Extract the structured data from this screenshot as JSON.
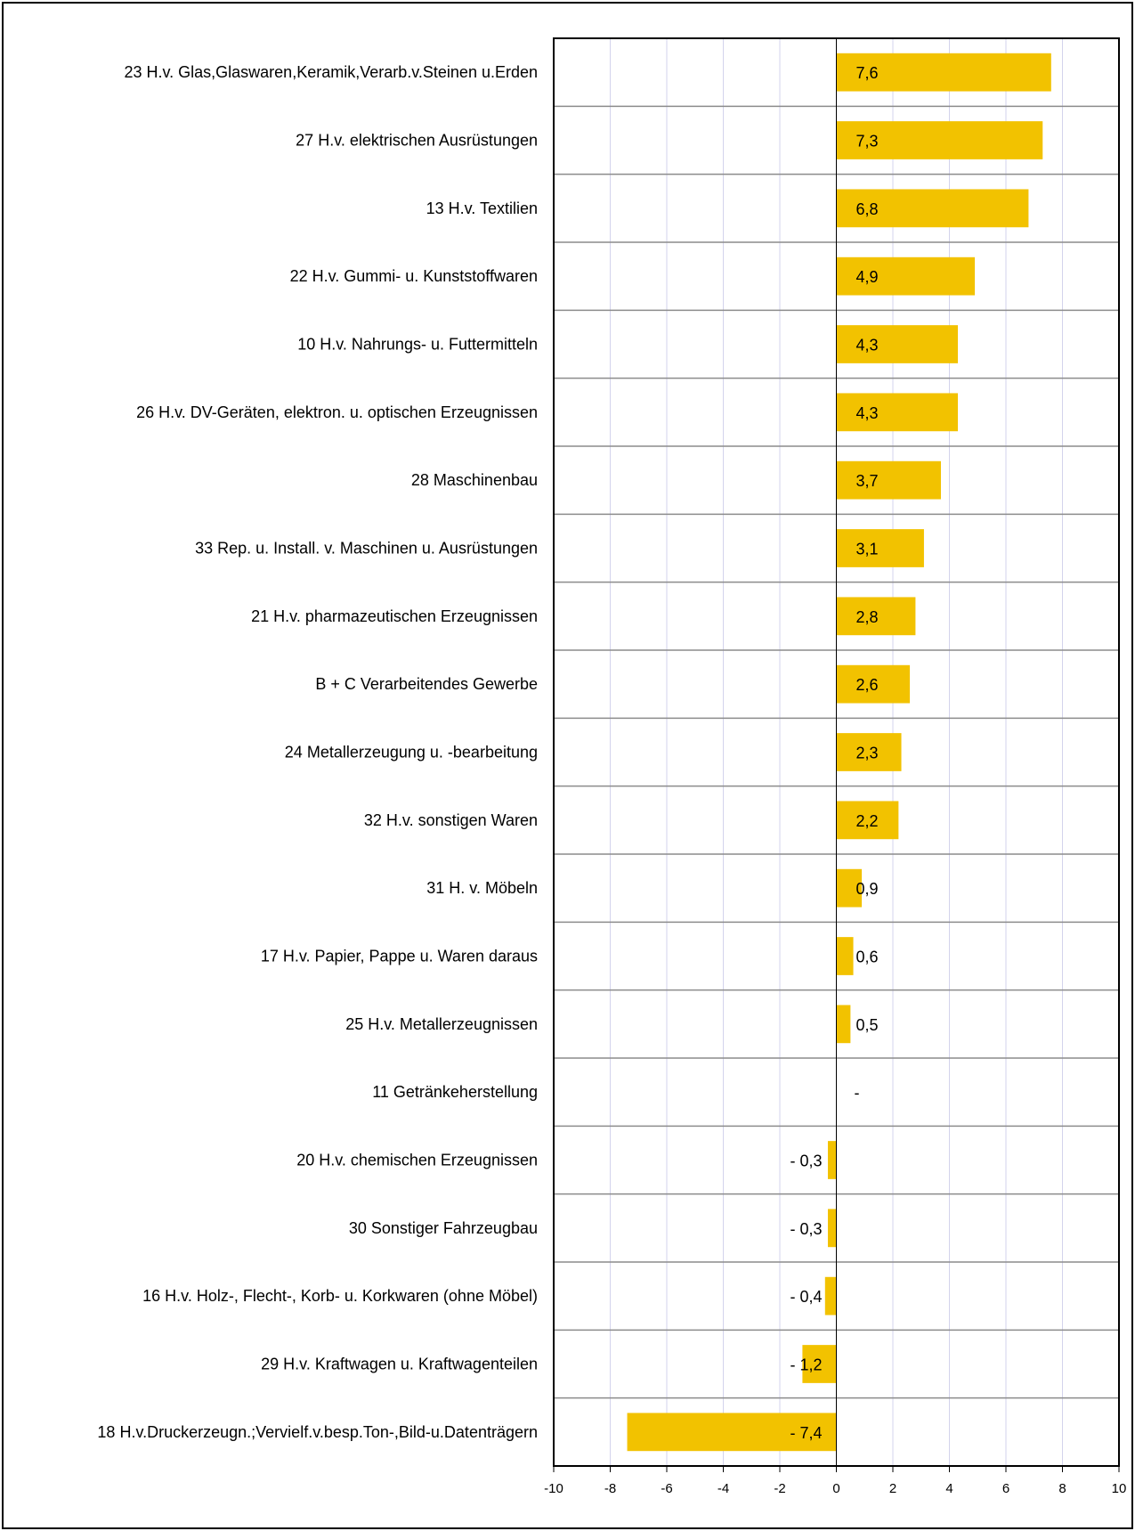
{
  "chart_data": {
    "type": "bar",
    "orientation": "horizontal",
    "title": "",
    "xlabel": "",
    "ylabel": "",
    "xlim": [
      -10,
      10
    ],
    "x_ticks": [
      -10,
      -8,
      -6,
      -4,
      -2,
      0,
      2,
      4,
      6,
      8,
      10
    ],
    "grid": "vertical lines at every tick, horizontal lines between categories",
    "bar_color": "#F2C200",
    "categories": [
      "23 H.v. Glas,Glaswaren,Keramik,Verarb.v.Steinen u.Erden",
      "27 H.v. elektrischen Ausrüstungen",
      "13 H.v. Textilien",
      "22 H.v. Gummi- u. Kunststoffwaren",
      "10 H.v. Nahrungs- u. Futtermitteln",
      "26 H.v. DV-Geräten, elektron. u. optischen Erzeugnissen",
      "28 Maschinenbau",
      "33 Rep. u. Install. v. Maschinen u. Ausrüstungen",
      "21 H.v. pharmazeutischen Erzeugnissen",
      "B + C Verarbeitendes Gewerbe",
      "24 Metallerzeugung u. -bearbeitung",
      "32 H.v. sonstigen Waren",
      "31  H. v. Möbeln",
      "17 H.v. Papier, Pappe u. Waren daraus",
      "25 H.v. Metallerzeugnissen",
      "11 Getränkeherstellung",
      "20 H.v. chemischen Erzeugnissen",
      "30 Sonstiger Fahrzeugbau",
      "16 H.v. Holz-, Flecht-, Korb- u. Korkwaren (ohne Möbel)",
      "29 H.v. Kraftwagen u. Kraftwagenteilen",
      "18 H.v.Druckerzeugn.;Vervielf.v.besp.Ton-,Bild-u.Datenträgern"
    ],
    "values": [
      7.6,
      7.3,
      6.8,
      4.9,
      4.3,
      4.3,
      3.7,
      3.1,
      2.8,
      2.6,
      2.3,
      2.2,
      0.9,
      0.6,
      0.5,
      0,
      -0.3,
      -0.3,
      -0.4,
      -1.2,
      -7.4
    ],
    "value_labels": [
      "7,6",
      "7,3",
      "6,8",
      "4,9",
      "4,3",
      "4,3",
      "3,7",
      "3,1",
      "2,8",
      "2,6",
      "2,3",
      "2,2",
      "0,9",
      "0,6",
      "0,5",
      "-",
      "- 0,3",
      "- 0,3",
      "- 0,4",
      "- 1,2",
      "- 7,4"
    ]
  }
}
